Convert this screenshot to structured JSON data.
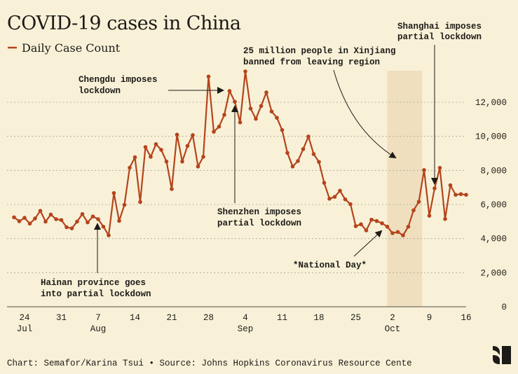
{
  "colors": {
    "background": "#f8f1d8",
    "series": "#b5441c",
    "shade": "#efdfbf",
    "grid": "#a9a597",
    "text": "#1d1b17"
  },
  "chart_data": {
    "type": "line",
    "title": "COVID-19 cases in China",
    "legend": {
      "position": "top-left",
      "entries": [
        "Daily Case Count"
      ]
    },
    "xlabel": "",
    "ylabel": "",
    "ylim": [
      0,
      14000
    ],
    "y_axis_side": "right",
    "grid": "horizontal dashed",
    "y_ticks": [
      0,
      2000,
      4000,
      6000,
      8000,
      10000,
      12000
    ],
    "y_tick_labels": [
      "0",
      "2,000",
      "4,000",
      "6,000",
      "8,000",
      "10,000",
      "12,000"
    ],
    "x_ticks": [
      {
        "date": "Jul 24",
        "label": "24",
        "month": "Jul"
      },
      {
        "date": "Jul 31",
        "label": "31",
        "month": ""
      },
      {
        "date": "Aug 7",
        "label": "7",
        "month": "Aug"
      },
      {
        "date": "Aug 14",
        "label": "14",
        "month": ""
      },
      {
        "date": "Aug 21",
        "label": "21",
        "month": ""
      },
      {
        "date": "Aug 28",
        "label": "28",
        "month": ""
      },
      {
        "date": "Sep 4",
        "label": "4",
        "month": "Sep"
      },
      {
        "date": "Sep 11",
        "label": "11",
        "month": ""
      },
      {
        "date": "Sep 18",
        "label": "18",
        "month": ""
      },
      {
        "date": "Sep 25",
        "label": "25",
        "month": ""
      },
      {
        "date": "Oct 2",
        "label": "2",
        "month": "Oct"
      },
      {
        "date": "Oct 9",
        "label": "9",
        "month": ""
      },
      {
        "date": "Oct 16",
        "label": "16",
        "month": ""
      }
    ],
    "shaded_range": {
      "from": "Oct 1",
      "to": "Oct 7"
    },
    "series": [
      {
        "name": "Daily Case Count",
        "x": [
          "Jul 22",
          "Jul 23",
          "Jul 24",
          "Jul 25",
          "Jul 26",
          "Jul 27",
          "Jul 28",
          "Jul 29",
          "Jul 30",
          "Jul 31",
          "Aug 1",
          "Aug 2",
          "Aug 3",
          "Aug 4",
          "Aug 5",
          "Aug 6",
          "Aug 7",
          "Aug 8",
          "Aug 9",
          "Aug 10",
          "Aug 11",
          "Aug 12",
          "Aug 13",
          "Aug 14",
          "Aug 15",
          "Aug 16",
          "Aug 17",
          "Aug 18",
          "Aug 19",
          "Aug 20",
          "Aug 21",
          "Aug 22",
          "Aug 23",
          "Aug 24",
          "Aug 25",
          "Aug 26",
          "Aug 27",
          "Aug 28",
          "Aug 29",
          "Aug 30",
          "Aug 31",
          "Sep 1",
          "Sep 2",
          "Sep 3",
          "Sep 4",
          "Sep 5",
          "Sep 6",
          "Sep 7",
          "Sep 8",
          "Sep 9",
          "Sep 10",
          "Sep 11",
          "Sep 12",
          "Sep 13",
          "Sep 14",
          "Sep 15",
          "Sep 16",
          "Sep 17",
          "Sep 18",
          "Sep 19",
          "Sep 20",
          "Sep 21",
          "Sep 22",
          "Sep 23",
          "Sep 24",
          "Sep 25",
          "Sep 26",
          "Sep 27",
          "Sep 28",
          "Sep 29",
          "Sep 30",
          "Oct 1",
          "Oct 2",
          "Oct 3",
          "Oct 4",
          "Oct 5",
          "Oct 6",
          "Oct 7",
          "Oct 8",
          "Oct 9",
          "Oct 10",
          "Oct 11",
          "Oct 12",
          "Oct 13",
          "Oct 14",
          "Oct 15",
          "Oct 16"
        ],
        "values": [
          5250,
          5020,
          5220,
          4880,
          5180,
          5630,
          5000,
          5410,
          5140,
          5090,
          4670,
          4600,
          5000,
          5440,
          4950,
          5300,
          5140,
          4700,
          4190,
          6670,
          5040,
          5980,
          8160,
          8770,
          6150,
          9370,
          8800,
          9540,
          9210,
          8520,
          6910,
          10100,
          8520,
          9440,
          10070,
          8230,
          8800,
          13510,
          10270,
          10570,
          11260,
          12660,
          12030,
          10820,
          13810,
          11630,
          11030,
          11780,
          12580,
          11460,
          11090,
          10370,
          9030,
          8230,
          8550,
          9250,
          9990,
          8960,
          8500,
          7270,
          6340,
          6450,
          6810,
          6300,
          6020,
          4730,
          4840,
          4480,
          5110,
          5030,
          4900,
          4700,
          4320,
          4390,
          4190,
          4700,
          5660,
          6160,
          8020,
          5340,
          6950,
          8150,
          5150,
          7130,
          6570,
          6610,
          6570
        ]
      }
    ],
    "annotations": [
      {
        "lines": [
          "Chengdu imposes",
          "lockdown"
        ]
      },
      {
        "lines": [
          "Shenzhen imposes",
          "partial lockdown"
        ]
      },
      {
        "lines": [
          "25 million people in Xinjiang",
          "banned from leaving region"
        ]
      },
      {
        "lines": [
          "Shanghai imposes",
          "partial lockdown"
        ]
      },
      {
        "lines": [
          "Hainan province goes",
          "into partial lockdown"
        ]
      },
      {
        "lines": [
          "*National Day*"
        ]
      }
    ]
  },
  "footer": {
    "credit": "Chart: Semafor/Karina Tsui • Source: Johns Hopkins Coronavirus Resource Cente",
    "logo_text": "S"
  }
}
